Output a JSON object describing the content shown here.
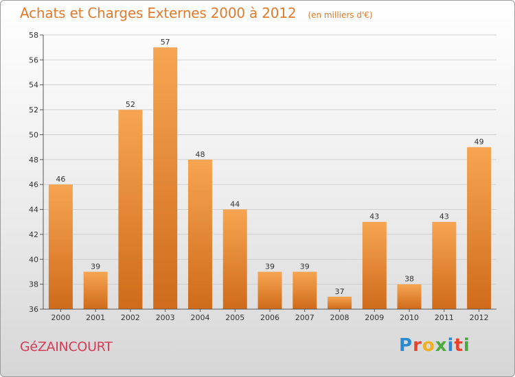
{
  "header": {
    "title": "Achats et Charges Externes 2000 à 2012",
    "subtitle": "(en milliers d'€)"
  },
  "footer": {
    "commune": "GéZAINCOURT",
    "logo_text": "Proxiti",
    "logo_colors": [
      "#2a8bd0",
      "#e8412c",
      "#f0b020",
      "#4aab3c",
      "#2a8bd0",
      "#e8412c",
      "#4aab3c"
    ]
  },
  "colors": {
    "bar_top": "#f7a552",
    "bar_bottom": "#cf6b1a",
    "accent": "#e07b2e"
  },
  "chart_data": {
    "type": "bar",
    "categories": [
      "2000",
      "2001",
      "2002",
      "2003",
      "2004",
      "2005",
      "2006",
      "2007",
      "2008",
      "2009",
      "2010",
      "2011",
      "2012"
    ],
    "values": [
      46,
      39,
      52,
      57,
      48,
      44,
      39,
      39,
      37,
      43,
      38,
      43,
      49
    ],
    "title": "Achats et Charges Externes 2000 à 2012",
    "ylim": [
      36,
      58
    ],
    "yticks": [
      36,
      38,
      40,
      42,
      44,
      46,
      48,
      50,
      52,
      54,
      56,
      58
    ],
    "grid": true,
    "legend": "none"
  }
}
